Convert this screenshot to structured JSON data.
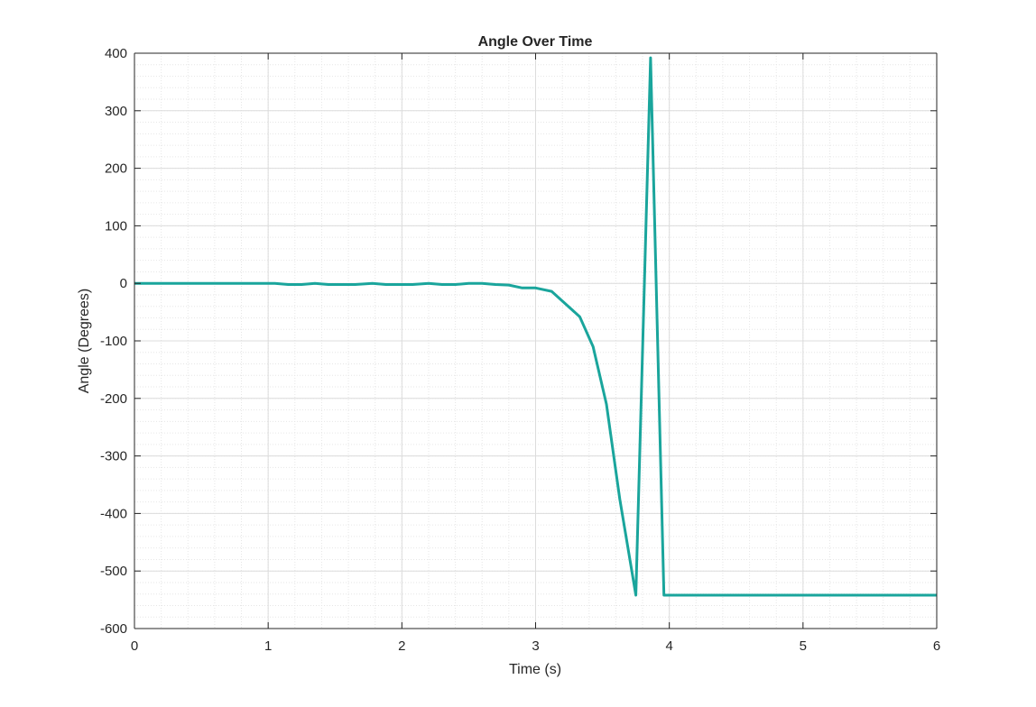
{
  "chart_data": {
    "type": "line",
    "title": "Angle Over Time",
    "xlabel": "Time (s)",
    "ylabel": "Angle (Degrees)",
    "xlim": [
      0,
      6
    ],
    "ylim": [
      -600,
      400
    ],
    "xticks": [
      0,
      1,
      2,
      3,
      4,
      5,
      6
    ],
    "yticks": [
      -600,
      -500,
      -400,
      -300,
      -200,
      -100,
      0,
      100,
      200,
      300,
      400
    ],
    "grid": true,
    "minor_grid": true,
    "line_color": "#1aa59c",
    "series": [
      {
        "x": [
          0,
          0.1,
          0.2,
          0.3,
          0.4,
          0.5,
          0.6,
          0.7,
          0.8,
          0.9,
          1.0,
          1.05,
          1.15,
          1.25,
          1.35,
          1.45,
          1.55,
          1.65,
          1.78,
          1.88,
          1.98,
          2.08,
          2.2,
          2.3,
          2.4,
          2.5,
          2.6,
          2.7,
          2.8,
          2.9,
          3.0,
          3.12,
          3.22,
          3.33,
          3.43,
          3.53,
          3.63,
          3.75,
          3.86,
          3.96,
          4.0,
          4.5,
          5.0,
          5.5,
          6.0
        ],
        "y": [
          0,
          0,
          0,
          0,
          0,
          0,
          0,
          0,
          0,
          0,
          0,
          0,
          -2,
          -2,
          0,
          -2,
          -2,
          -2,
          0,
          -2,
          -2,
          -2,
          0,
          -2,
          -2,
          0,
          0,
          -2,
          -3,
          -8,
          -8,
          -14,
          -35,
          -58,
          -110,
          -210,
          -375,
          -542,
          392,
          -542,
          -542,
          -542,
          -542,
          -542,
          -542
        ]
      }
    ]
  }
}
